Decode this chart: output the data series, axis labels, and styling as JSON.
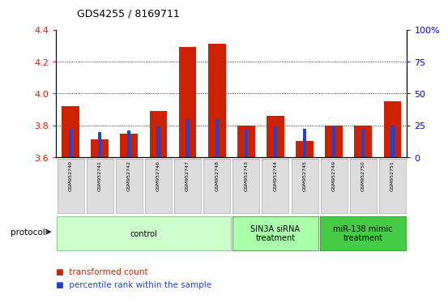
{
  "title": "GDS4255 / 8169711",
  "samples": [
    "GSM952740",
    "GSM952741",
    "GSM952742",
    "GSM952746",
    "GSM952747",
    "GSM952748",
    "GSM952743",
    "GSM952744",
    "GSM952745",
    "GSM952749",
    "GSM952750",
    "GSM952751"
  ],
  "transformed_count": [
    3.92,
    3.71,
    3.75,
    3.89,
    4.29,
    4.31,
    3.8,
    3.86,
    3.7,
    3.8,
    3.8,
    3.95
  ],
  "percentile_rank": [
    22,
    20,
    21,
    24,
    30,
    30,
    22,
    24,
    22,
    24,
    22,
    25
  ],
  "ymin": 3.6,
  "ymax": 4.4,
  "yticks_left": [
    3.6,
    3.8,
    4.0,
    4.2,
    4.4
  ],
  "yticks_right": [
    0,
    25,
    50,
    75,
    100
  ],
  "groups": [
    {
      "label": "control",
      "start": 0,
      "end": 5,
      "color": "#ccffcc",
      "border": "#88cc88"
    },
    {
      "label": "SIN3A siRNA\ntreatment",
      "start": 6,
      "end": 8,
      "color": "#aaffaa",
      "border": "#66aa66"
    },
    {
      "label": "miR-138 mimic\ntreatment",
      "start": 9,
      "end": 11,
      "color": "#44cc44",
      "border": "#33aa33"
    }
  ],
  "bar_color_red": "#cc2200",
  "bar_color_blue": "#2244cc",
  "baseline": 3.6,
  "bar_width": 0.6,
  "blue_bar_width": 0.12
}
